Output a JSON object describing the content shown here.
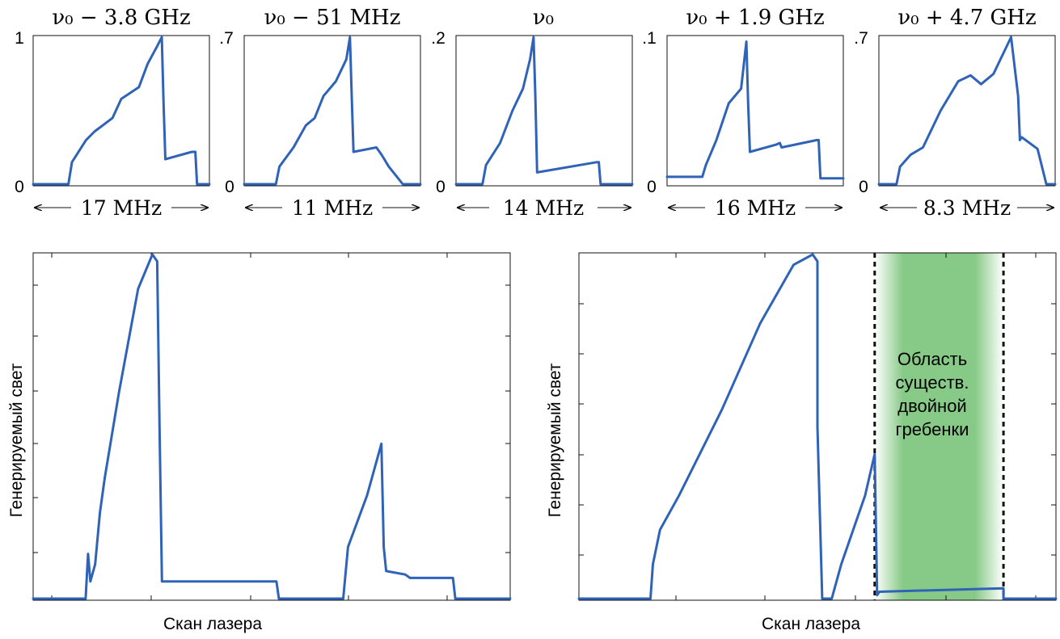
{
  "chart_data": [
    {
      "type": "line",
      "panel": "top-1",
      "title": "ν₀ − 3.8 GHz",
      "ytick_labels": [
        "1",
        "0"
      ],
      "span_label": "17 MHz",
      "x": [
        0,
        0.2,
        0.22,
        0.3,
        0.35,
        0.45,
        0.5,
        0.6,
        0.65,
        0.7,
        0.73,
        0.74,
        0.75,
        0.9,
        0.92,
        0.93,
        1
      ],
      "y": [
        0,
        0,
        0.15,
        0.3,
        0.36,
        0.45,
        0.58,
        0.66,
        0.82,
        0.93,
        1.0,
        0.55,
        0.17,
        0.22,
        0.22,
        0,
        0
      ]
    },
    {
      "type": "line",
      "panel": "top-2",
      "title": "ν₀ − 51 MHz",
      "ytick_labels": [
        ".7",
        "0"
      ],
      "span_label": "11 MHz",
      "x": [
        0,
        0.18,
        0.2,
        0.28,
        0.35,
        0.4,
        0.45,
        0.52,
        0.58,
        0.6,
        0.61,
        0.62,
        0.75,
        0.78,
        0.82,
        0.86,
        0.9,
        1
      ],
      "y": [
        0,
        0,
        0.12,
        0.25,
        0.4,
        0.45,
        0.6,
        0.7,
        0.85,
        1.0,
        0.6,
        0.22,
        0.25,
        0.2,
        0.12,
        0.06,
        0,
        0
      ]
    },
    {
      "type": "line",
      "panel": "top-3",
      "title": "ν₀",
      "ytick_labels": [
        ".2",
        "0"
      ],
      "span_label": "14 MHz",
      "x": [
        0,
        0.15,
        0.17,
        0.25,
        0.32,
        0.38,
        0.42,
        0.44,
        0.45,
        0.46,
        0.8,
        0.81,
        0.82,
        1
      ],
      "y": [
        0,
        0,
        0.13,
        0.28,
        0.5,
        0.65,
        0.85,
        1.0,
        0.6,
        0.08,
        0.15,
        0.15,
        0,
        0
      ]
    },
    {
      "type": "line",
      "panel": "top-4",
      "title": "ν₀ + 1.9 GHz",
      "ytick_labels": [
        ".1",
        "0"
      ],
      "span_label": "16 MHz",
      "x": [
        0,
        0.2,
        0.22,
        0.28,
        0.35,
        0.42,
        0.45,
        0.46,
        0.47,
        0.62,
        0.64,
        0.65,
        0.85,
        0.86,
        0.87,
        1
      ],
      "y": [
        0.05,
        0.05,
        0.13,
        0.3,
        0.55,
        0.65,
        0.97,
        0.55,
        0.22,
        0.27,
        0.28,
        0.25,
        0.3,
        0.3,
        0.04,
        0.04
      ]
    },
    {
      "type": "line",
      "panel": "top-5",
      "title": "ν₀ + 4.7 GHz",
      "ytick_labels": [
        ".7",
        "0"
      ],
      "span_label": "8.3 MHz",
      "x": [
        0,
        0.1,
        0.12,
        0.18,
        0.25,
        0.35,
        0.45,
        0.52,
        0.58,
        0.65,
        0.75,
        0.79,
        0.8,
        0.81,
        0.9,
        0.95,
        1
      ],
      "y": [
        0,
        0,
        0.12,
        0.2,
        0.25,
        0.5,
        0.7,
        0.74,
        0.68,
        0.75,
        1.0,
        0.6,
        0.3,
        0.32,
        0.24,
        0,
        0
      ]
    },
    {
      "type": "line",
      "panel": "bottom-left",
      "xlabel": "Скан лазера",
      "ylabel": "Генерируемый свет",
      "x": [
        0,
        0.11,
        0.115,
        0.12,
        0.13,
        0.14,
        0.15,
        0.18,
        0.22,
        0.25,
        0.26,
        0.265,
        0.27,
        0.5,
        0.51,
        0.515,
        0.64,
        0.65,
        0.66,
        0.7,
        0.72,
        0.73,
        0.735,
        0.74,
        0.78,
        0.79,
        0.88,
        0.885,
        0.89,
        1
      ],
      "y": [
        0,
        0,
        0.13,
        0.05,
        0.1,
        0.25,
        0.35,
        0.6,
        0.9,
        1.0,
        0.98,
        0.5,
        0.05,
        0.05,
        0.05,
        0,
        0,
        0,
        0.15,
        0.3,
        0.4,
        0.45,
        0.15,
        0.08,
        0.07,
        0.06,
        0.06,
        0,
        0,
        0
      ]
    },
    {
      "type": "line",
      "panel": "bottom-right",
      "xlabel": "Скан лазера",
      "ylabel": "Генерируемый свет",
      "annotation": [
        "Область",
        "существ.",
        "двойной",
        "гребенки"
      ],
      "highlight_range": [
        0.62,
        0.89
      ],
      "highlight_color": "#5fb85f",
      "x": [
        0,
        0.15,
        0.155,
        0.17,
        0.21,
        0.3,
        0.38,
        0.45,
        0.49,
        0.5,
        0.5,
        0.51,
        0.53,
        0.54,
        0.55,
        0.6,
        0.62,
        0.625,
        0.63,
        0.89,
        0.89,
        1
      ],
      "y": [
        0,
        0,
        0.1,
        0.2,
        0.3,
        0.55,
        0.8,
        0.97,
        1.0,
        0.98,
        0.5,
        0,
        0,
        0.05,
        0.1,
        0.3,
        0.42,
        0.01,
        0.02,
        0.03,
        0,
        0
      ]
    }
  ]
}
